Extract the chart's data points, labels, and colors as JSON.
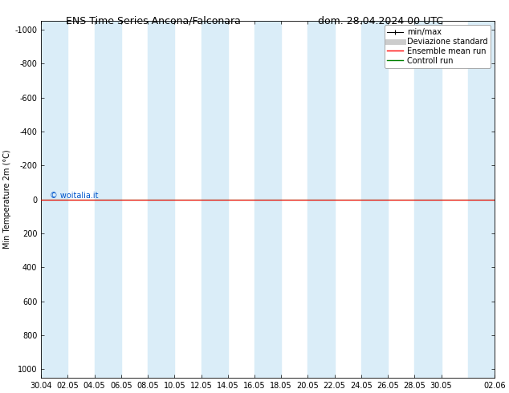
{
  "title_left": "ENS Time Series Ancona/Falconara",
  "title_right": "dom. 28.04.2024 00 UTC",
  "ylabel": "Min Temperature 2m (°C)",
  "xlabel": "",
  "background_color": "#ffffff",
  "plot_bg_color": "#ffffff",
  "band_color": "#daedf8",
  "ylim_bottom": 1050,
  "ylim_top": -1050,
  "yticks": [
    -1000,
    -800,
    -600,
    -400,
    -200,
    0,
    200,
    400,
    600,
    800,
    1000
  ],
  "x_start": 0,
  "x_end": 34,
  "xtick_labels": [
    "30.04",
    "02.05",
    "04.05",
    "06.05",
    "08.05",
    "10.05",
    "12.05",
    "14.05",
    "16.05",
    "18.05",
    "20.05",
    "22.05",
    "24.05",
    "26.05",
    "28.05",
    "30.05",
    "02.06"
  ],
  "xtick_positions": [
    0,
    2,
    4,
    6,
    8,
    10,
    12,
    14,
    16,
    18,
    20,
    22,
    24,
    26,
    28,
    30,
    34
  ],
  "shaded_bands": [
    [
      0,
      2
    ],
    [
      4,
      6
    ],
    [
      8,
      10
    ],
    [
      12,
      14
    ],
    [
      16,
      18
    ],
    [
      20,
      22
    ],
    [
      24,
      26
    ],
    [
      28,
      30
    ],
    [
      32,
      34
    ]
  ],
  "ensemble_mean_color": "#ff0000",
  "control_run_color": "#008000",
  "minmax_color": "#000000",
  "std_color": "#aaaaaa",
  "watermark": "© woitalia.it",
  "watermark_color": "#0055cc",
  "watermark_fontsize": 7,
  "legend_labels": [
    "min/max",
    "Deviazione standard",
    "Ensemble mean run",
    "Controll run"
  ],
  "legend_colors": [
    "#000000",
    "#aaaaaa",
    "#ff0000",
    "#008000"
  ],
  "title_fontsize": 9,
  "axis_fontsize": 7,
  "tick_fontsize": 7,
  "legend_fontsize": 7
}
